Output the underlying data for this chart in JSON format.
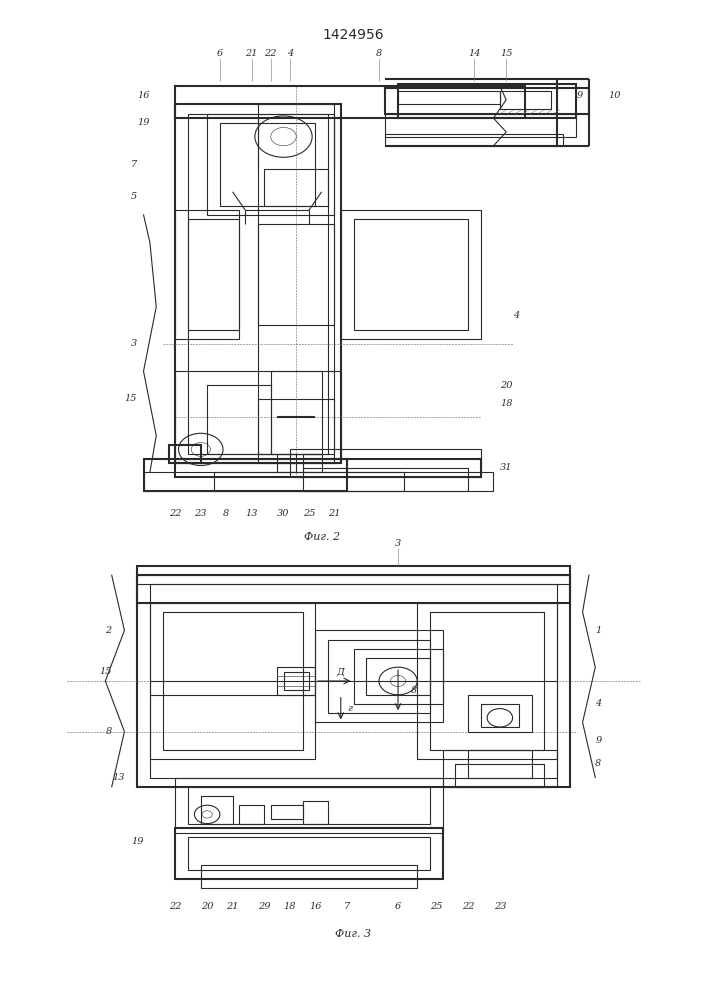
{
  "title": "1424956",
  "fig1_caption": "Фиг. 2",
  "fig2_caption": "Фиг. 3",
  "bg_color": "#ffffff",
  "line_color": "#2a2a2a",
  "lw": 0.8,
  "tlw": 0.4,
  "thw": 1.5
}
